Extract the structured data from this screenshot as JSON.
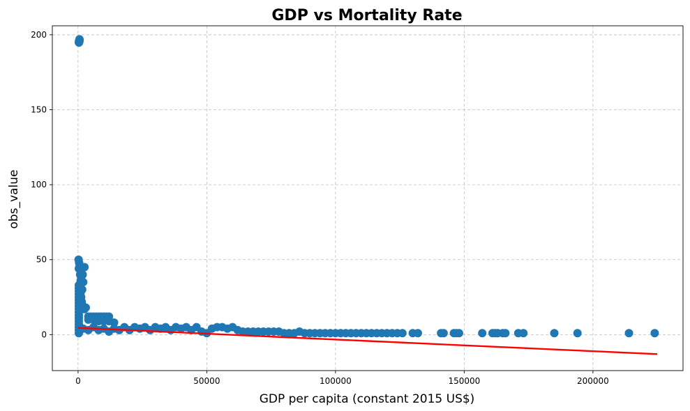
{
  "chart_data": {
    "type": "scatter",
    "title": "GDP vs Mortality Rate",
    "xlabel": "GDP per capita (constant 2015 US$)",
    "ylabel": "obs_value",
    "xlim": [
      -10000,
      235000
    ],
    "ylim": [
      -24,
      206
    ],
    "xticks": [
      0,
      50000,
      100000,
      150000,
      200000
    ],
    "yticks": [
      0,
      50,
      100,
      150,
      200
    ],
    "grid": true,
    "point_color": "#1f77b4",
    "trend_color": "#ff0000",
    "series": [
      {
        "points": [
          [
            300,
            195
          ],
          [
            400,
            196
          ],
          [
            500,
            195.5
          ],
          [
            600,
            196.5
          ],
          [
            350,
            194.8
          ],
          [
            550,
            197
          ],
          [
            200,
            50
          ],
          [
            400,
            48
          ],
          [
            600,
            46
          ],
          [
            300,
            44
          ],
          [
            1500,
            45
          ],
          [
            2500,
            45
          ],
          [
            800,
            40
          ],
          [
            1200,
            38
          ],
          [
            1800,
            40
          ],
          [
            1000,
            36
          ],
          [
            2000,
            35
          ],
          [
            1600,
            30
          ],
          [
            300,
            33
          ],
          [
            300,
            31
          ],
          [
            300,
            29
          ],
          [
            300,
            27
          ],
          [
            300,
            25
          ],
          [
            300,
            23
          ],
          [
            300,
            21
          ],
          [
            300,
            19
          ],
          [
            300,
            17
          ],
          [
            300,
            15
          ],
          [
            300,
            13
          ],
          [
            300,
            11
          ],
          [
            300,
            9
          ],
          [
            300,
            7
          ],
          [
            300,
            5
          ],
          [
            300,
            3
          ],
          [
            300,
            1
          ],
          [
            1000,
            28
          ],
          [
            1200,
            25
          ],
          [
            1400,
            22
          ],
          [
            1600,
            20
          ],
          [
            2000,
            18
          ],
          [
            2500,
            17
          ],
          [
            3000,
            18
          ],
          [
            4000,
            12
          ],
          [
            5000,
            12
          ],
          [
            6000,
            12
          ],
          [
            7000,
            12
          ],
          [
            8000,
            12
          ],
          [
            9000,
            12
          ],
          [
            10000,
            12
          ],
          [
            11000,
            12
          ],
          [
            12000,
            12
          ],
          [
            4000,
            10
          ],
          [
            6000,
            10
          ],
          [
            8000,
            9
          ],
          [
            10000,
            9
          ],
          [
            12000,
            9
          ],
          [
            14000,
            8
          ],
          [
            2000,
            4
          ],
          [
            4000,
            3
          ],
          [
            6000,
            5
          ],
          [
            8000,
            3
          ],
          [
            10000,
            4
          ],
          [
            12000,
            2
          ],
          [
            14000,
            4
          ],
          [
            16000,
            3
          ],
          [
            18000,
            5
          ],
          [
            20000,
            3
          ],
          [
            22000,
            5
          ],
          [
            24000,
            4
          ],
          [
            26000,
            5
          ],
          [
            28000,
            3
          ],
          [
            30000,
            5
          ],
          [
            32000,
            4
          ],
          [
            34000,
            5
          ],
          [
            36000,
            3
          ],
          [
            38000,
            5
          ],
          [
            40000,
            4
          ],
          [
            42000,
            5
          ],
          [
            44000,
            3
          ],
          [
            46000,
            5
          ],
          [
            48000,
            2
          ],
          [
            50000,
            1
          ],
          [
            52000,
            4
          ],
          [
            54000,
            5
          ],
          [
            56000,
            5
          ],
          [
            58000,
            4
          ],
          [
            60000,
            5
          ],
          [
            62000,
            3
          ],
          [
            64000,
            2
          ],
          [
            66000,
            2
          ],
          [
            68000,
            2
          ],
          [
            70000,
            2
          ],
          [
            72000,
            2
          ],
          [
            74000,
            2
          ],
          [
            76000,
            2
          ],
          [
            78000,
            2
          ],
          [
            80000,
            1
          ],
          [
            82000,
            1
          ],
          [
            84000,
            1
          ],
          [
            86000,
            2
          ],
          [
            88000,
            1
          ],
          [
            90000,
            1
          ],
          [
            92000,
            1
          ],
          [
            94000,
            1
          ],
          [
            96000,
            1
          ],
          [
            98000,
            1
          ],
          [
            100000,
            1
          ],
          [
            102000,
            1
          ],
          [
            104000,
            1
          ],
          [
            106000,
            1
          ],
          [
            108000,
            1
          ],
          [
            110000,
            1
          ],
          [
            112000,
            1
          ],
          [
            114000,
            1
          ],
          [
            116000,
            1
          ],
          [
            118000,
            1
          ],
          [
            120000,
            1
          ],
          [
            122000,
            1
          ],
          [
            124000,
            1
          ],
          [
            126000,
            1
          ],
          [
            130000,
            1
          ],
          [
            132000,
            1
          ],
          [
            141000,
            1
          ],
          [
            142000,
            1
          ],
          [
            146000,
            1
          ],
          [
            147000,
            1
          ],
          [
            148000,
            1
          ],
          [
            157000,
            1
          ],
          [
            161000,
            1
          ],
          [
            162000,
            1
          ],
          [
            163000,
            1
          ],
          [
            165000,
            1
          ],
          [
            166000,
            1
          ],
          [
            171000,
            1
          ],
          [
            173000,
            1
          ],
          [
            185000,
            1
          ],
          [
            194000,
            1
          ],
          [
            214000,
            1
          ],
          [
            224000,
            1
          ]
        ]
      }
    ],
    "trendline": {
      "x": [
        0,
        225000
      ],
      "y": [
        4.5,
        -13
      ]
    }
  }
}
